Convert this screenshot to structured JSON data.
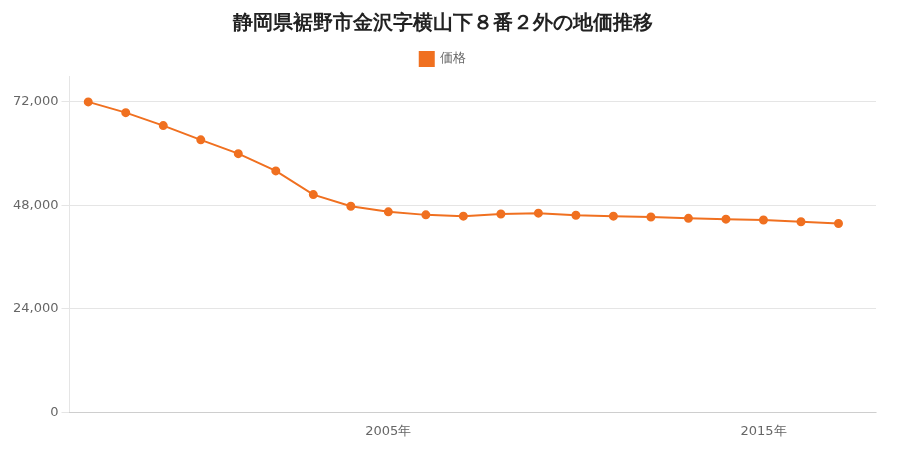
{
  "chart_data": {
    "type": "line",
    "title": "静岡県裾野市金沢字横山下８番２外の地価推移",
    "x": [
      1997,
      1998,
      1999,
      2000,
      2001,
      2002,
      2003,
      2004,
      2005,
      2006,
      2007,
      2008,
      2009,
      2010,
      2011,
      2012,
      2013,
      2014,
      2015,
      2016,
      2017
    ],
    "series": [
      {
        "name": "価格",
        "color": "#f07020",
        "marker": "circle",
        "values": [
          72000,
          69500,
          66500,
          63200,
          60000,
          56000,
          50500,
          47800,
          46500,
          45800,
          45500,
          46000,
          46200,
          45700,
          45500,
          45300,
          45000,
          44800,
          44600,
          44200,
          43800
        ]
      }
    ],
    "xlim": [
      1996.5,
      2018
    ],
    "xticks": [
      {
        "value": 2005,
        "label": "2005年"
      },
      {
        "value": 2015,
        "label": "2015年"
      }
    ],
    "ylim": [
      0,
      78000
    ],
    "yticks": [
      0,
      {
        "value": 24000,
        "label": "24,000"
      },
      {
        "value": 48000,
        "label": "48,000"
      },
      {
        "value": 72000,
        "label": "72,000"
      }
    ],
    "grid": "y",
    "legend": "top"
  }
}
